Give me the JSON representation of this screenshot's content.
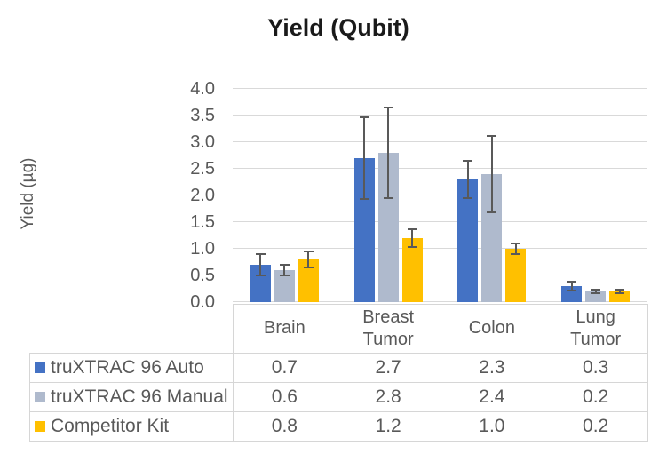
{
  "page": {
    "background": "#FFFFFF"
  },
  "chart_data": {
    "type": "bar",
    "title": "Yield (Qubit)",
    "ylabel": "Yield (µg)",
    "categories": [
      "Brain",
      "Breast Tumor",
      "Colon",
      "Lung Tumor"
    ],
    "series": [
      {
        "name": "truXTRAC 96 Auto",
        "color": "#4472C4",
        "values": [
          0.7,
          2.7,
          2.3,
          0.3
        ],
        "errors": [
          0.2,
          0.76,
          0.35,
          0.08
        ]
      },
      {
        "name": "truXTRAC 96 Manual",
        "color": "#AFBACD",
        "values": [
          0.6,
          2.8,
          2.4,
          0.2
        ],
        "errors": [
          0.1,
          0.85,
          0.72,
          0.04
        ]
      },
      {
        "name": "Competitor Kit",
        "color": "#FFC000",
        "values": [
          0.8,
          1.2,
          1.0,
          0.2
        ],
        "errors": [
          0.15,
          0.17,
          0.1,
          0.04
        ]
      }
    ],
    "ylim": [
      0.0,
      4.0
    ],
    "ytick_step": 0.5,
    "ytick_labels": [
      "0.0",
      "0.5",
      "1.0",
      "1.5",
      "2.0",
      "2.5",
      "3.0",
      "3.5",
      "4.0"
    ],
    "grid": true,
    "legend_position": "table-rows-left",
    "value_format_decimals": 1,
    "colors": {
      "error_bar": "#595959",
      "gridline": "#D9D9D9",
      "table_border": "#D6D6D6",
      "text": "#595959",
      "title_text": "#1A1A1A"
    }
  }
}
